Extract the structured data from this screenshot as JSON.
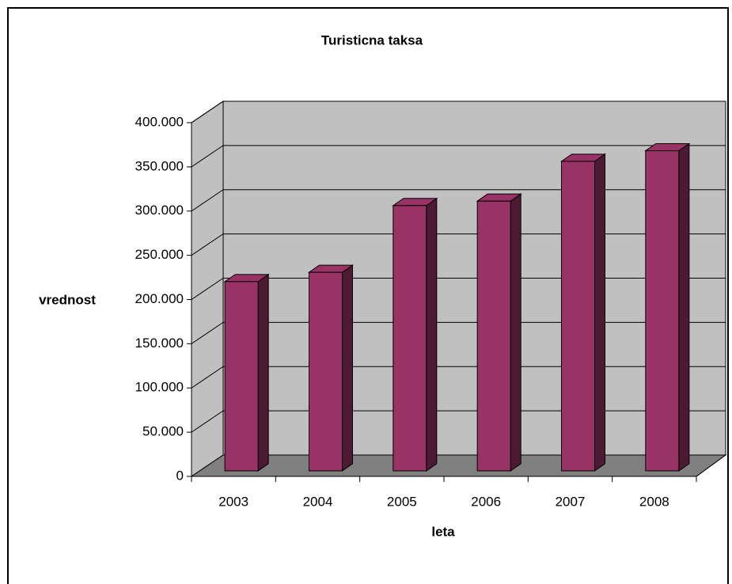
{
  "chart_data": {
    "type": "bar",
    "title": "Turisticna taksa",
    "x_label": "leta",
    "y_label": "vrednost",
    "categories": [
      "2003",
      "2004",
      "2005",
      "2006",
      "2007",
      "2008"
    ],
    "values": [
      214000,
      224500,
      300000,
      305000,
      350000,
      362000
    ],
    "color": "#993366",
    "ylim": [
      0,
      400000
    ],
    "yticks": [
      0,
      {
        "value": 50000,
        "label": "50.000"
      },
      {
        "value": 100000,
        "label": "100.000"
      },
      {
        "value": 150000,
        "label": "150.000"
      },
      {
        "value": 200000,
        "label": "200.000"
      },
      {
        "value": 250000,
        "label": "250.000"
      },
      {
        "value": 300000,
        "label": "300.000"
      },
      {
        "value": 350000,
        "label": "350.000"
      },
      {
        "value": 400000,
        "label": "400.000"
      }
    ],
    "grid": true
  }
}
